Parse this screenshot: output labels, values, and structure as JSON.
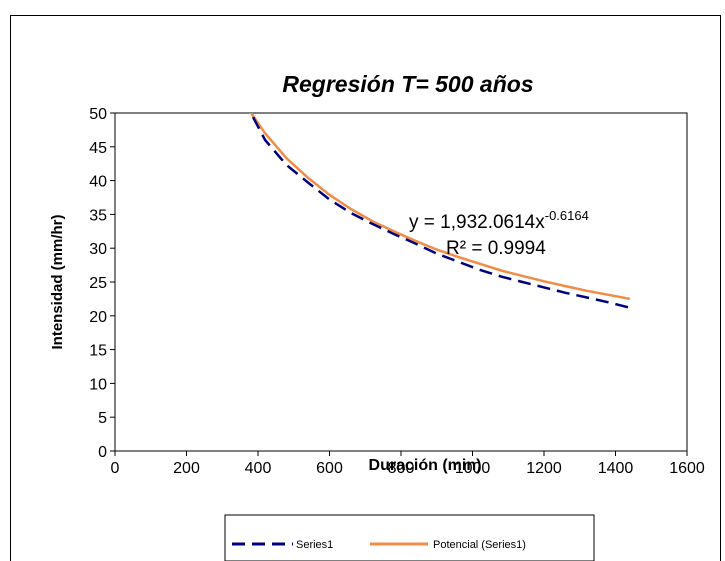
{
  "chart_data": {
    "type": "line",
    "title": "Regresión T= 500 años",
    "xlabel": "Duración (min)",
    "ylabel": "Intensidad (mm/hr)",
    "xlim": [
      0,
      1600
    ],
    "ylim": [
      0,
      50
    ],
    "x_ticks": [
      0,
      200,
      400,
      600,
      800,
      1000,
      1200,
      1400,
      1600
    ],
    "y_ticks": [
      0,
      5,
      10,
      15,
      20,
      25,
      30,
      35,
      40,
      45,
      50
    ],
    "grid": false,
    "legend_position": "bottom",
    "series": [
      {
        "name": "Series1",
        "style": "dashed",
        "color": "#000080",
        "x": [
          360,
          420,
          480,
          540,
          600,
          660,
          720,
          780,
          840,
          900,
          960,
          1020,
          1080,
          1140,
          1200,
          1260,
          1320,
          1380,
          1440
        ],
        "y": [
          52.0,
          46.0,
          42.3,
          39.7,
          37.2,
          35.2,
          33.6,
          32.1,
          30.7,
          29.2,
          28.0,
          26.8,
          25.8,
          25.0,
          24.2,
          23.4,
          22.7,
          22.0,
          21.2
        ]
      },
      {
        "name": "Potencial (Series1)",
        "style": "solid",
        "color": "#F08C46",
        "x": [
          360,
          420,
          480,
          540,
          600,
          660,
          720,
          780,
          840,
          900,
          960,
          1020,
          1080,
          1140,
          1200,
          1260,
          1320,
          1380,
          1440
        ],
        "y": [
          51.6,
          47.0,
          43.3,
          40.4,
          37.9,
          35.8,
          34.0,
          32.5,
          31.1,
          29.8,
          28.7,
          27.7,
          26.7,
          25.9,
          25.1,
          24.4,
          23.7,
          23.1,
          22.5
        ]
      }
    ],
    "annotation": {
      "equation_base": "y = 1,932.0614x",
      "equation_exp": "-0.6164",
      "r_squared": "R² = 0.9994"
    }
  }
}
